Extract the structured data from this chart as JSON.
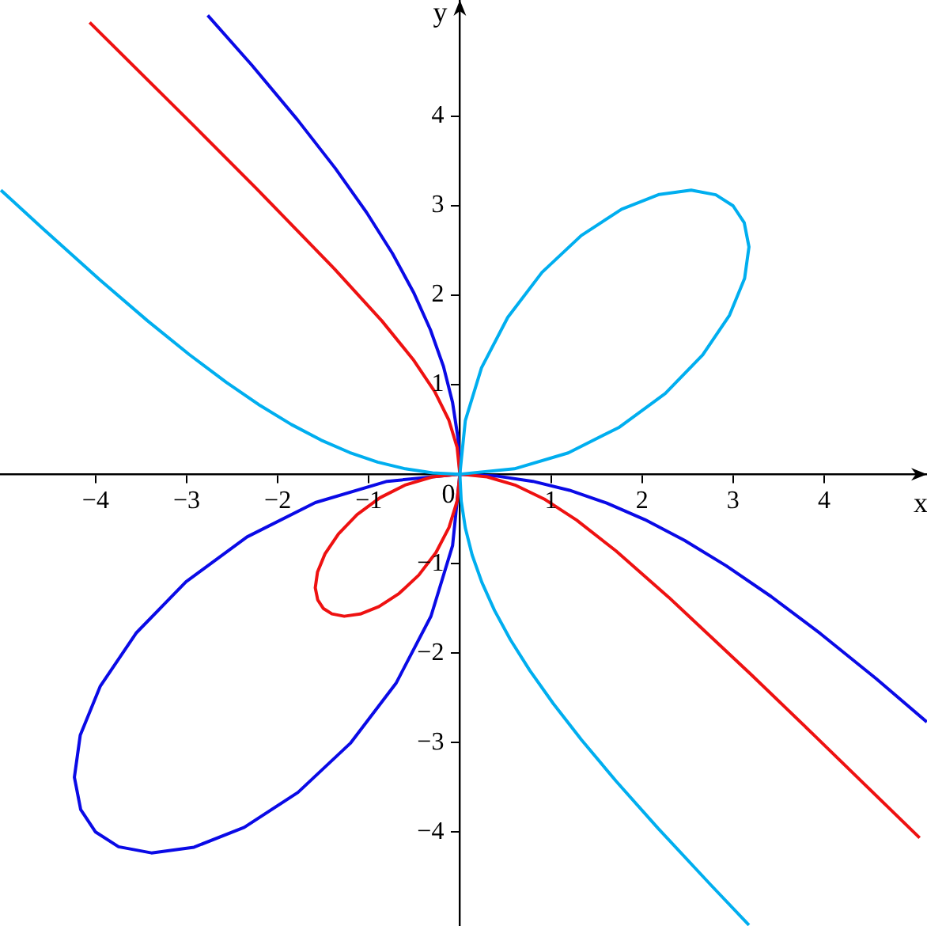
{
  "chart_data": {
    "type": "line",
    "xlabel": "x",
    "ylabel": "y",
    "grid": false,
    "legend": false,
    "marker": "none",
    "xlim": [
      -5.05,
      5.13
    ],
    "ylim": [
      -5.05,
      5.3
    ],
    "xticks": [
      {
        "value": -4,
        "label": "−4"
      },
      {
        "value": -3,
        "label": "−3"
      },
      {
        "value": -2,
        "label": "−2"
      },
      {
        "value": -1,
        "label": "−1"
      },
      {
        "value": 0,
        "label": "0"
      },
      1,
      2,
      3,
      4
    ],
    "yticks": [
      {
        "value": -4,
        "label": "−4"
      },
      {
        "value": -3,
        "label": "−3"
      },
      {
        "value": -2,
        "label": "−2"
      },
      {
        "value": -1,
        "label": "−1"
      },
      1,
      2,
      3,
      4
    ],
    "series": [
      {
        "color": "#00aeef",
        "x": [
          -5.04,
          -4.59,
          -3.959,
          -3.429,
          -2.971,
          -2.564,
          -2.194,
          -1.85,
          -1.524,
          -1.21,
          -0.903,
          -0.6,
          -0.3,
          0,
          0.599,
          1.19,
          1.753,
          2.256,
          2.667,
          2.961,
          3.127,
          3.175,
          3.123,
          3,
          2.811,
          2.54,
          2.189,
          1.776,
          1.333,
          0.902,
          0.526,
          0.238,
          0.06,
          0,
          0.015,
          0.06,
          0.135,
          0.242,
          0.381,
          0.555,
          0.768,
          1.026,
          1.337,
          1.714,
          2.177,
          2.755,
          3.175
        ],
        "values": [
          3.175,
          2.755,
          2.177,
          1.714,
          1.337,
          1.026,
          0.768,
          0.555,
          0.381,
          0.242,
          0.135,
          0.06,
          0.015,
          0,
          0.06,
          0.238,
          0.526,
          0.902,
          1.333,
          1.776,
          2.189,
          2.54,
          2.811,
          3,
          3.123,
          3.175,
          3.127,
          2.961,
          2.667,
          2.256,
          1.753,
          1.19,
          0.599,
          0,
          -0.3,
          -0.6,
          -0.903,
          -1.21,
          -1.524,
          -1.85,
          -2.194,
          -2.564,
          -2.971,
          -3.429,
          -3.959,
          -4.59,
          -5.04
        ]
      },
      {
        "color": "#ee1111",
        "x": [
          5.049,
          3.892,
          3.196,
          2.296,
          1.714,
          1.282,
          0.925,
          0.605,
          0.3,
          0,
          -0.3,
          -0.595,
          -0.877,
          -1.128,
          -1.333,
          -1.48,
          -1.563,
          -1.588,
          -1.561,
          -1.5,
          -1.405,
          -1.27,
          -1.094,
          -0.888,
          -0.667,
          -0.451,
          -0.263,
          -0.119,
          -0.03,
          0,
          -0.03,
          -0.121,
          -0.277,
          -0.513,
          -0.857,
          -1.378,
          -2.237,
          -2.919,
          -4.065
        ],
        "values": [
          -4.065,
          -2.919,
          -2.237,
          -1.378,
          -0.857,
          -0.513,
          -0.277,
          -0.121,
          -0.03,
          0,
          -0.03,
          -0.119,
          -0.263,
          -0.451,
          -0.667,
          -0.888,
          -1.094,
          -1.27,
          -1.405,
          -1.5,
          -1.561,
          -1.588,
          -1.563,
          -1.48,
          -1.333,
          -1.128,
          -0.877,
          -0.595,
          -0.3,
          0,
          0.3,
          0.605,
          0.925,
          1.282,
          1.714,
          2.296,
          3.196,
          3.892,
          5.049
        ]
      },
      {
        "color": "#0a0ae6",
        "x": [
          5.128,
          4.572,
          3.961,
          3.419,
          2.925,
          2.467,
          2.032,
          1.613,
          1.204,
          0.801,
          0.4,
          0,
          -0.799,
          -1.587,
          -2.337,
          -3.008,
          -3.556,
          -3.948,
          -4.169,
          -4.233,
          -4.164,
          -4,
          -3.748,
          -3.387,
          -2.919,
          -2.368,
          -1.777,
          -1.203,
          -0.701,
          -0.317,
          -0.08,
          0,
          -0.02,
          -0.08,
          -0.18,
          -0.323,
          -0.508,
          -0.74,
          -1.024,
          -1.368,
          -1.783,
          -2.285,
          -2.769
        ],
        "values": [
          -2.769,
          -2.285,
          -1.783,
          -1.368,
          -1.024,
          -0.74,
          -0.508,
          -0.323,
          -0.18,
          -0.08,
          -0.02,
          0,
          -0.08,
          -0.317,
          -0.701,
          -1.203,
          -1.777,
          -2.368,
          -2.919,
          -3.387,
          -3.748,
          -4,
          -4.164,
          -4.233,
          -4.169,
          -3.948,
          -3.556,
          -3.008,
          -2.337,
          -1.587,
          -0.799,
          0,
          0.4,
          0.801,
          1.204,
          1.613,
          2.032,
          2.467,
          2.925,
          3.419,
          3.961,
          4.572,
          5.128
        ]
      }
    ]
  }
}
